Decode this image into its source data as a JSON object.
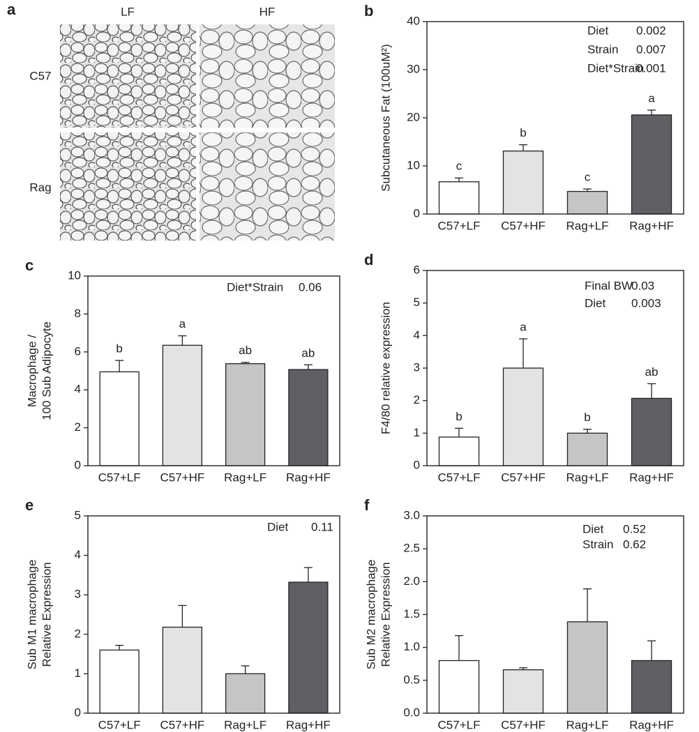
{
  "figure_a": {
    "panel": "a",
    "columns": [
      "LF",
      "HF"
    ],
    "rows": [
      "C57",
      "Rag"
    ]
  },
  "chart_data": [
    {
      "type": "bar",
      "panel": "b",
      "ylabel": "Subcutaneous Fat (100uM²)",
      "categories": [
        "C57+LF",
        "C57+HF",
        "Rag+LF",
        "Rag+HF"
      ],
      "values": [
        6.7,
        13.1,
        4.7,
        20.6
      ],
      "errors": [
        0.8,
        1.3,
        0.5,
        1.0
      ],
      "colors": [
        "#ffffff",
        "#e2e3e5",
        "#c4c5c7",
        "#5f6064"
      ],
      "annotations": [
        "c",
        "b",
        "c",
        "a"
      ],
      "stats": [
        {
          "name": "Diet",
          "p": 0.002
        },
        {
          "name": "Strain",
          "p": 0.007
        },
        {
          "name": "Diet*Strain",
          "p": 0.001
        }
      ],
      "ylim": [
        0,
        40
      ],
      "yticks": [
        0,
        10,
        20,
        30,
        40
      ]
    },
    {
      "type": "bar",
      "panel": "c",
      "ylabel": [
        "Macrophage /",
        "100 Sub Adipocyte"
      ],
      "categories": [
        "C57+LF",
        "C57+HF",
        "Rag+LF",
        "Rag+HF"
      ],
      "values": [
        4.95,
        6.35,
        5.38,
        5.07
      ],
      "errors": [
        0.6,
        0.5,
        0.07,
        0.25
      ],
      "colors": [
        "#ffffff",
        "#e2e3e5",
        "#c4c5c7",
        "#5f6064"
      ],
      "annotations": [
        "b",
        "a",
        "ab",
        "ab"
      ],
      "stats": [
        {
          "name": "Diet*Strain",
          "p": 0.06
        }
      ],
      "ylim": [
        0,
        10
      ],
      "yticks": [
        0,
        2,
        4,
        6,
        8,
        10
      ]
    },
    {
      "type": "bar",
      "panel": "d",
      "ylabel": "F4/80 relative  expression",
      "categories": [
        "C57+LF",
        "C57+HF",
        "Rag+LF",
        "Rag+HF"
      ],
      "values": [
        0.88,
        3.0,
        1.0,
        2.07
      ],
      "errors": [
        0.27,
        0.9,
        0.12,
        0.45
      ],
      "colors": [
        "#ffffff",
        "#e2e3e5",
        "#c4c5c7",
        "#5f6064"
      ],
      "annotations": [
        "b",
        "a",
        "b",
        "ab"
      ],
      "stats": [
        {
          "name": "Final BW",
          "p": 0.03
        },
        {
          "name": "Diet",
          "p": 0.003
        }
      ],
      "ylim": [
        0,
        6
      ],
      "yticks": [
        0,
        1,
        2,
        3,
        4,
        5,
        6
      ]
    },
    {
      "type": "bar",
      "panel": "e",
      "ylabel": [
        "Sub M1 macrophage",
        "Relative Expression"
      ],
      "categories": [
        "C57+LF",
        "C57+HF",
        "Rag+LF",
        "Rag+HF"
      ],
      "values": [
        1.6,
        2.18,
        1.0,
        3.32
      ],
      "errors": [
        0.12,
        0.55,
        0.2,
        0.37
      ],
      "colors": [
        "#ffffff",
        "#e2e3e5",
        "#c4c5c7",
        "#5f6064"
      ],
      "stats": [
        {
          "name": "Diet",
          "p": 0.11
        }
      ],
      "ylim": [
        0,
        5
      ],
      "yticks": [
        0,
        1,
        2,
        3,
        4,
        5
      ]
    },
    {
      "type": "bar",
      "panel": "f",
      "ylabel": [
        "Sub M2 macrophage",
        "Relative Expression"
      ],
      "categories": [
        "C57+LF",
        "C57+HF",
        "Rag+LF",
        "Rag+HF"
      ],
      "values": [
        0.8,
        0.66,
        1.39,
        0.8
      ],
      "errors": [
        0.38,
        0.03,
        0.5,
        0.3
      ],
      "colors": [
        "#ffffff",
        "#e2e3e5",
        "#c4c5c7",
        "#5f6064"
      ],
      "stats": [
        {
          "name": "Diet",
          "p": 0.52
        },
        {
          "name": "Strain",
          "p": 0.62
        }
      ],
      "ylim": [
        0,
        3
      ],
      "yticks": [
        {
          "value": 0,
          "label": "0.0"
        },
        0.5,
        {
          "value": 1,
          "label": "1.0"
        },
        1.5,
        {
          "value": 2,
          "label": "2.0"
        },
        2.5,
        {
          "value": 3,
          "label": "3.0"
        }
      ]
    }
  ]
}
